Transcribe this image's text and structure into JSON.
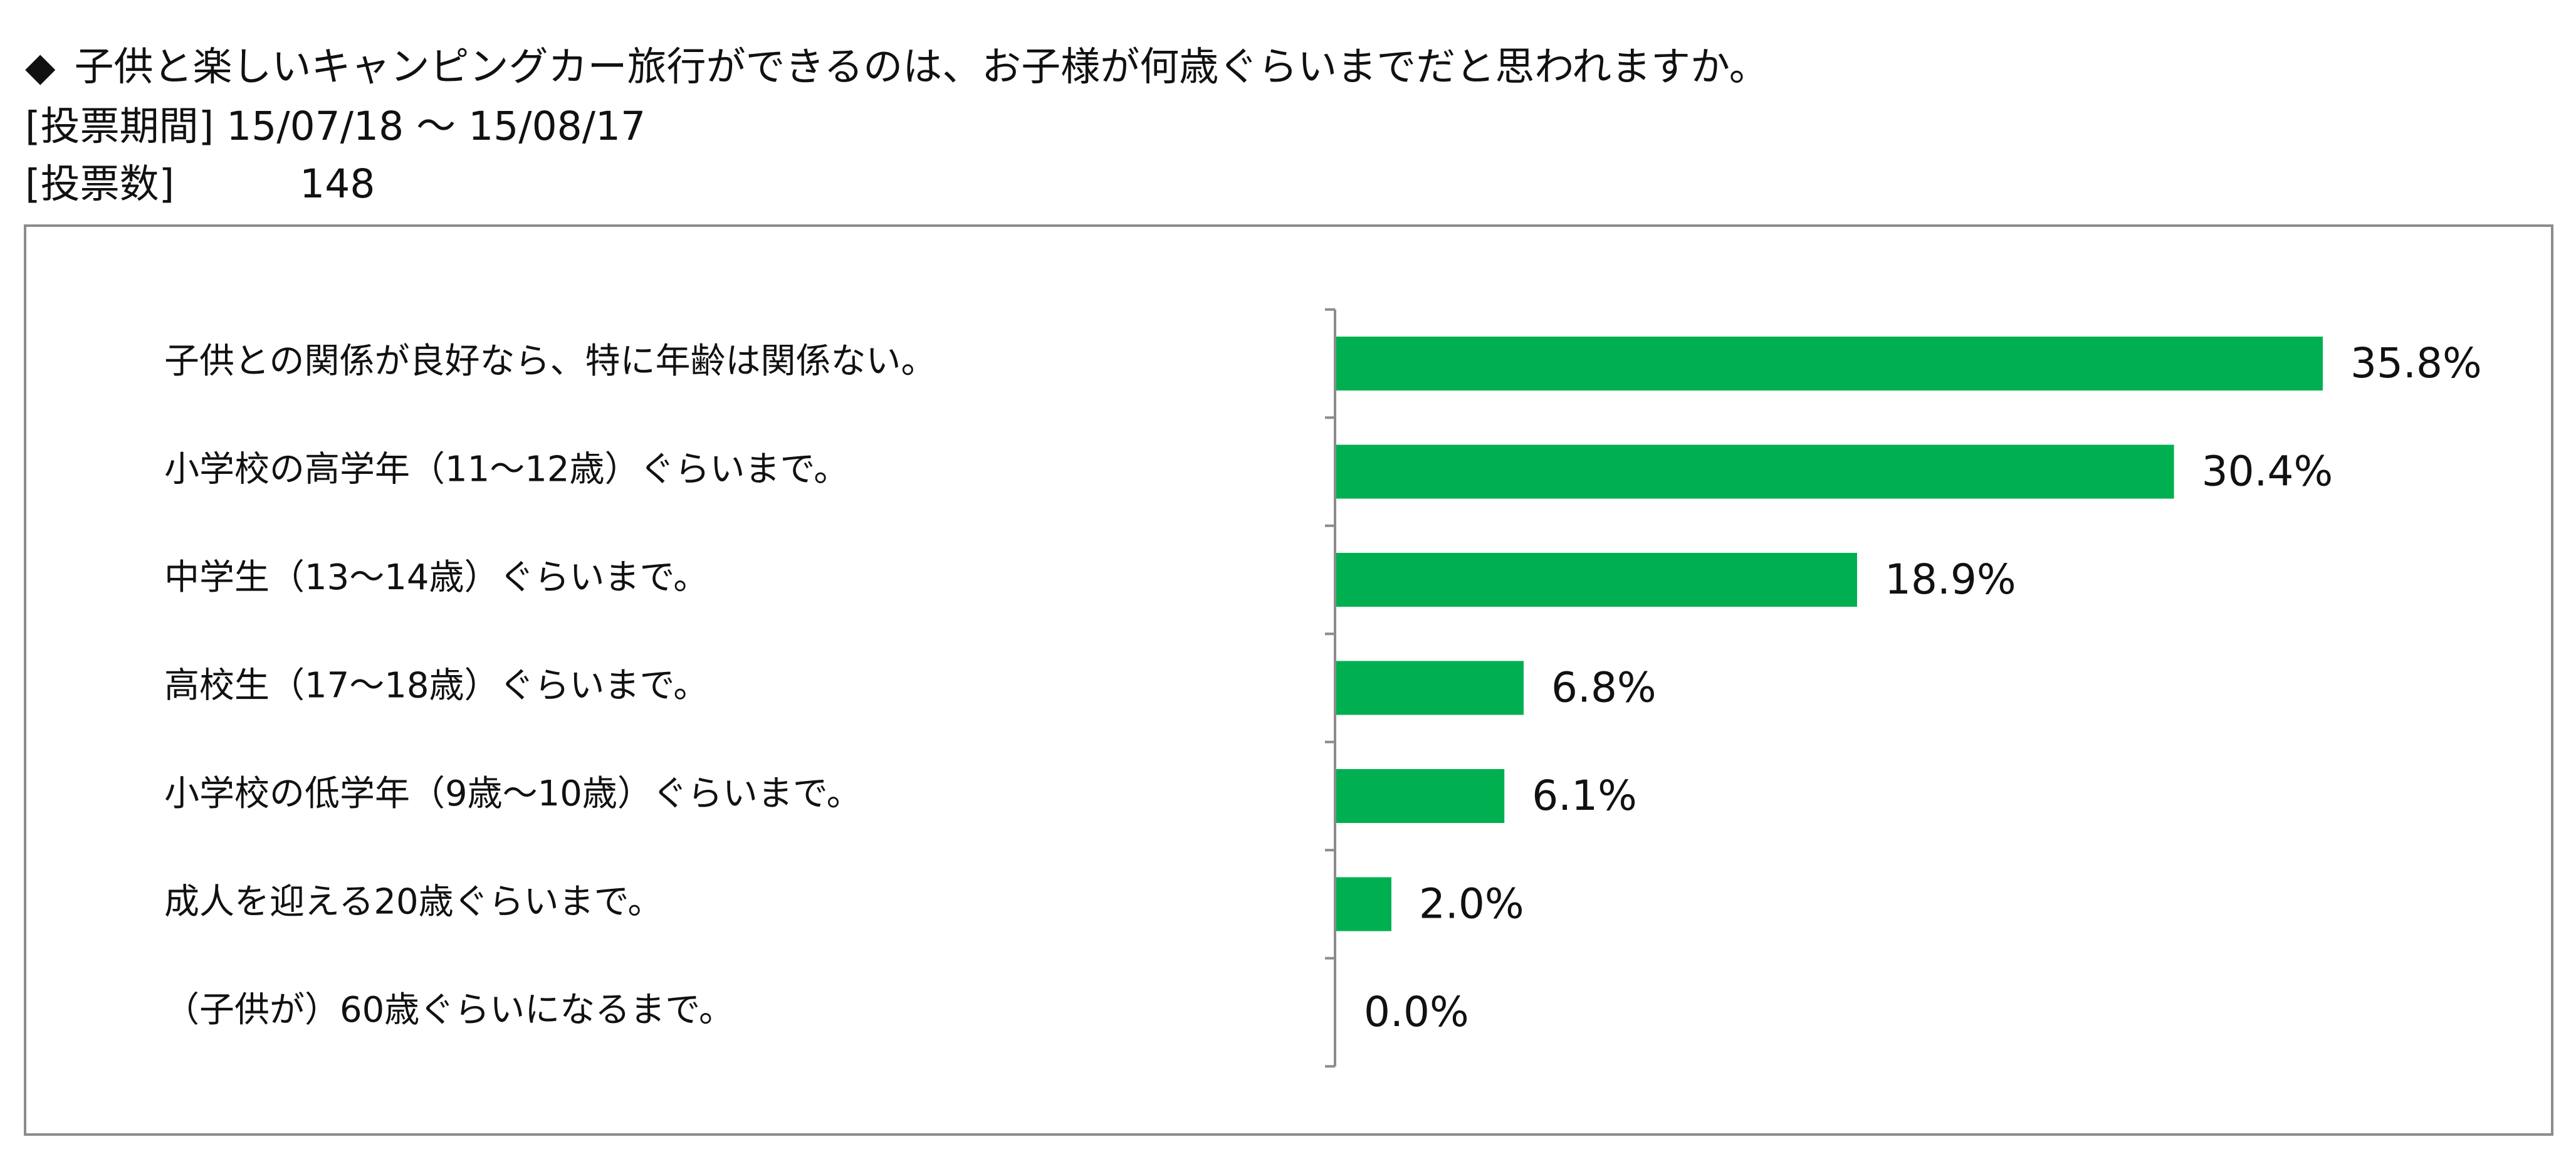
{
  "header": {
    "bullet": "◆",
    "question": "子供と楽しいキャンピングカー旅行ができるのは、お子様が何歳ぐらいまでだと思われますか。",
    "period_label": "[投票期間]",
    "period_value": "15/07/18 ～ 15/08/17",
    "votes_label": "[投票数]",
    "votes_value": "148"
  },
  "chart_data": {
    "type": "bar",
    "orientation": "horizontal",
    "categories": [
      "子供との関係が良好なら、特に年齢は関係ない。",
      "小学校の高学年（11～12歳）ぐらいまで。",
      "中学生（13～14歳）ぐらいまで。",
      "高校生（17～18歳）ぐらいまで。",
      "小学校の低学年（9歳～10歳）ぐらいまで。",
      "成人を迎える20歳ぐらいまで。",
      "（子供が）60歳ぐらいになるまで。"
    ],
    "values": [
      35.8,
      30.4,
      18.9,
      6.8,
      6.1,
      2.0,
      0.0
    ],
    "value_labels": [
      "35.8%",
      "30.4%",
      "18.9%",
      "6.8%",
      "6.1%",
      "2.0%",
      "0.0%"
    ],
    "unit": "%",
    "bar_color": "#00b050",
    "axis_color": "#8c8c8c",
    "grid": false,
    "legend": "none"
  }
}
